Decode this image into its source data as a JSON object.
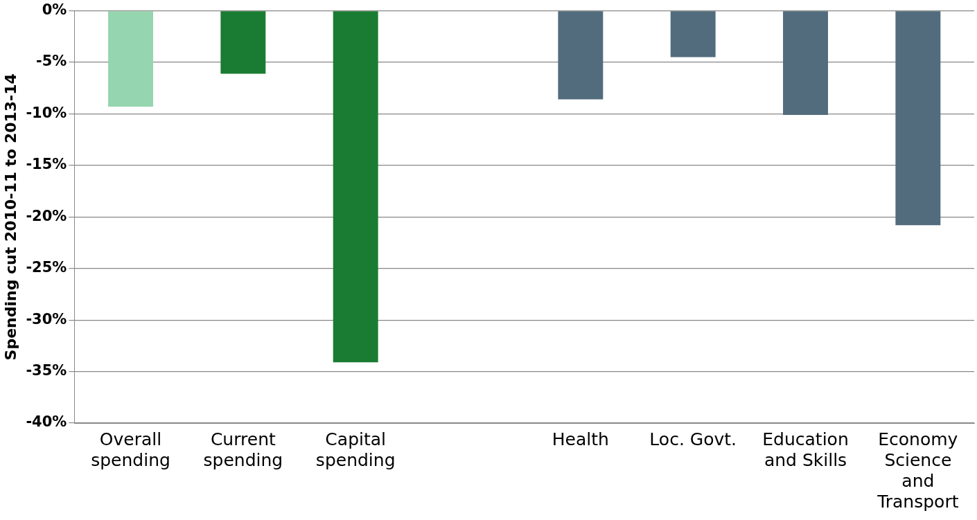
{
  "chart_data": {
    "type": "bar",
    "ylabel": "Spending cut 2010-11 to 2013-14",
    "categories": [
      "Overall spending",
      "Current spending",
      "Capital spending",
      null,
      "Health",
      "Loc. Govt.",
      "Education and Skills",
      "Economy Science and Transport"
    ],
    "values": [
      -9.3,
      -6.1,
      -34.1,
      null,
      -8.6,
      -4.5,
      -10.1,
      -20.8
    ],
    "colors": [
      "#95d5af",
      "#1a7c32",
      "#1a7c32",
      "#526c7d",
      "#526c7d",
      "#526c7d",
      "#526c7d",
      "#526c7d"
    ],
    "ylim": [
      -40,
      0
    ],
    "yticks": [
      {
        "value": 0,
        "label": "0%"
      },
      {
        "value": -5,
        "label": "-5%"
      },
      {
        "value": -10,
        "label": "-10%"
      },
      {
        "value": -15,
        "label": "-15%"
      },
      {
        "value": -20,
        "label": "-20%"
      },
      {
        "value": -25,
        "label": "-25%"
      },
      {
        "value": -30,
        "label": "-30%"
      },
      {
        "value": -35,
        "label": "-35%"
      },
      {
        "value": -40,
        "label": "-40%"
      }
    ],
    "grid": "y",
    "legend": false
  }
}
